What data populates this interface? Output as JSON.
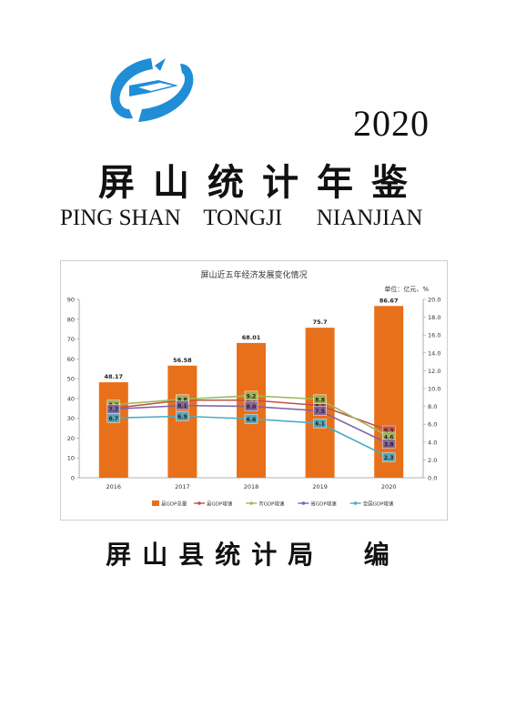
{
  "cover": {
    "year": "2020",
    "title": "屏山统计年鉴",
    "subtitle_parts": [
      "PING SHAN",
      "TONGJI",
      "NIANJIAN"
    ],
    "editor": "屏山县统计局  编",
    "logo_icon": "statistics-bureau-logo-icon",
    "logo_color": "#1f8ed6"
  },
  "chart_data": {
    "type": "bar",
    "title": "屏山近五年经济发展变化情况",
    "unit_note": "单位：亿元、%",
    "categories": [
      "2016",
      "2017",
      "2018",
      "2019",
      "2020"
    ],
    "ylim_left": [
      0,
      90
    ],
    "yticks_left": [
      "0",
      "10",
      "20",
      "30",
      "40",
      "50",
      "60",
      "70",
      "80",
      "90"
    ],
    "ylim_right": [
      0,
      20
    ],
    "yticks_right": [
      "0.0",
      "2.0",
      "4.0",
      "6.0",
      "8.0",
      "10.0",
      "12.0",
      "14.0",
      "16.0",
      "18.0",
      "20.0"
    ],
    "bars": {
      "name": "县GDP总量",
      "color": "#e8701a",
      "values": [
        48.17,
        56.58,
        68.01,
        75.7,
        86.67
      ],
      "labels": [
        "48.17",
        "56.58",
        "68.01",
        "75.7",
        "86.67"
      ]
    },
    "series": [
      {
        "name": "县GDP增速",
        "color": "#c0504d",
        "values": [
          7.8,
          8.7,
          8.7,
          8.1,
          5.3
        ],
        "labels": [
          "7.8",
          "8.7",
          "8.7",
          "8.1",
          "5.3"
        ]
      },
      {
        "name": "市GDP增速",
        "color": "#9bbb59",
        "values": [
          8.2,
          8.8,
          9.2,
          8.8,
          4.6
        ],
        "labels": [
          "8.2",
          "8.8",
          "9.2",
          "8.8",
          "4.6"
        ]
      },
      {
        "name": "省GDP增速",
        "color": "#8064a2",
        "values": [
          7.7,
          8.1,
          8.0,
          7.5,
          3.8
        ],
        "labels": [
          "7.7",
          "8.1",
          "8.0",
          "7.5",
          "3.8"
        ]
      },
      {
        "name": "全国GDP增速",
        "color": "#4bacc6",
        "values": [
          6.7,
          6.9,
          6.6,
          6.1,
          2.3
        ],
        "labels": [
          "6.7",
          "6.9",
          "6.6",
          "6.1",
          "2.3"
        ]
      }
    ],
    "legend_position": "bottom",
    "grid": false
  }
}
